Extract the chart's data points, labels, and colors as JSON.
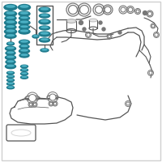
{
  "bg_color": "#ffffff",
  "border_color": "#d0d0d0",
  "teal": "#2b8fa0",
  "teal_mid": "#1e7a8c",
  "teal_hi": "#5cc4d8",
  "teal_dark": "#0d5566",
  "gray_line": "#555555",
  "gray_part": "#777777",
  "gray_light": "#aaaaaa",
  "figsize": [
    2.0,
    2.0
  ],
  "dpi": 100
}
